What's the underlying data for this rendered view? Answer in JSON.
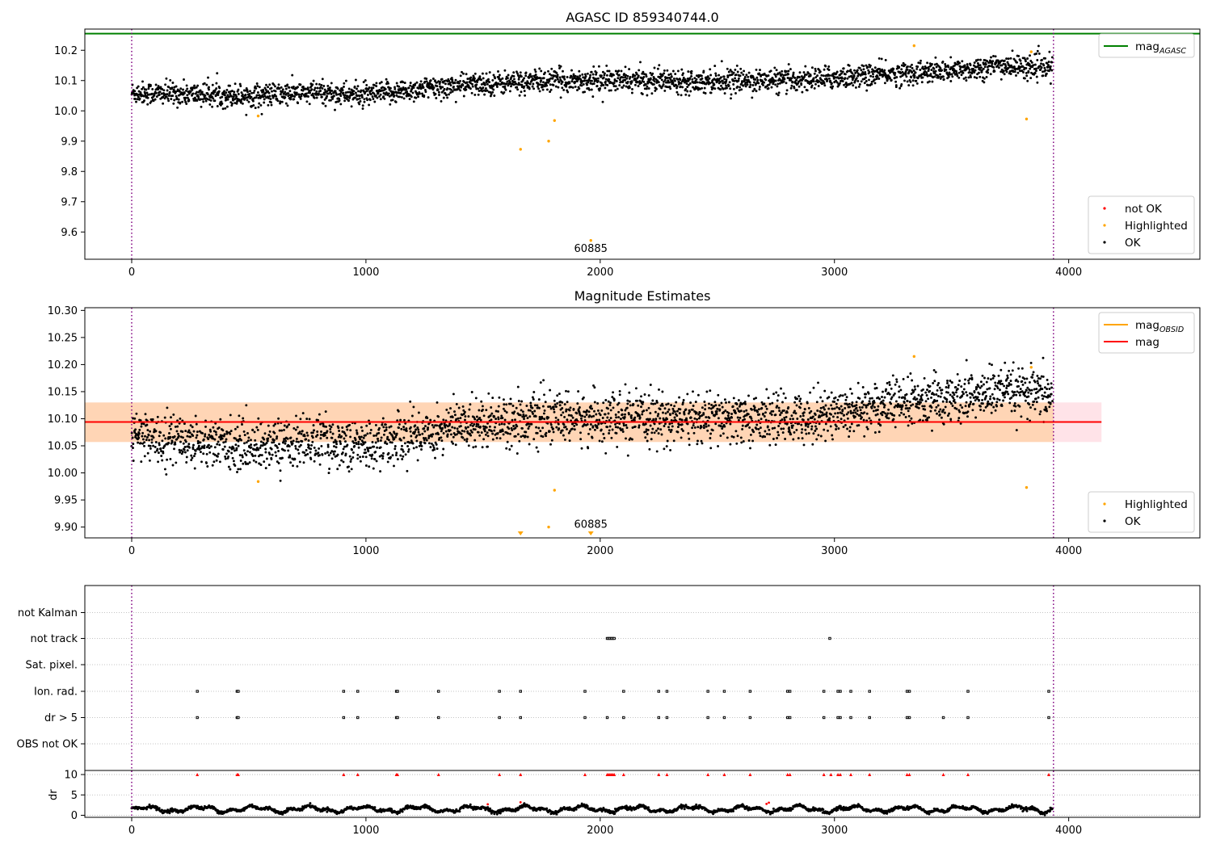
{
  "chart_data": [
    {
      "type": "scatter",
      "title": "AGASC ID 859340744.0",
      "xlim": [
        -200,
        4560
      ],
      "ylim": [
        9.51,
        10.27
      ],
      "xticks": [
        0,
        1000,
        2000,
        3000,
        4000
      ],
      "yticks": [
        9.6,
        9.7,
        9.8,
        9.9,
        10.0,
        10.1,
        10.2
      ],
      "ytick_decimals": 1,
      "vlines": [
        0,
        3935
      ],
      "hlines": [
        {
          "y": 10.255,
          "color": "#008000",
          "xmin": -200,
          "xmax": 4560
        }
      ],
      "ok_trend": [
        [
          0,
          10.06
        ],
        [
          500,
          10.05
        ],
        [
          800,
          10.06
        ],
        [
          1000,
          10.05
        ],
        [
          1200,
          10.07
        ],
        [
          1500,
          10.09
        ],
        [
          1800,
          10.1
        ],
        [
          2100,
          10.1
        ],
        [
          2500,
          10.1
        ],
        [
          2800,
          10.1
        ],
        [
          3000,
          10.11
        ],
        [
          3200,
          10.12
        ],
        [
          3500,
          10.13
        ],
        [
          3700,
          10.15
        ],
        [
          3930,
          10.14
        ]
      ],
      "ok_spread": 0.025,
      "highlighted_points": [
        [
          540,
          9.983
        ],
        [
          1660,
          9.873
        ],
        [
          1780,
          9.9
        ],
        [
          1805,
          9.968
        ],
        [
          1960,
          9.572
        ],
        [
          3340,
          10.215
        ],
        [
          3820,
          9.973
        ],
        [
          3840,
          10.195
        ]
      ],
      "annotations": [
        {
          "x": 1960,
          "y": 9.572,
          "text": "60885"
        }
      ],
      "legends": [
        {
          "position": "upper-right",
          "items": [
            {
              "kind": "line",
              "color": "#008000",
              "label": "mag",
              "sub": "AGASC"
            }
          ]
        },
        {
          "position": "lower-right",
          "items": [
            {
              "kind": "dot",
              "color": "#ff0000",
              "label": "not OK"
            },
            {
              "kind": "dot",
              "color": "#ffa500",
              "label": "Highlighted"
            },
            {
              "kind": "dot",
              "color": "#000000",
              "label": "OK"
            }
          ]
        }
      ]
    },
    {
      "type": "scatter",
      "title": "Magnitude Estimates",
      "xlim": [
        -200,
        4560
      ],
      "ylim": [
        9.88,
        10.305
      ],
      "xticks": [
        0,
        1000,
        2000,
        3000,
        4000
      ],
      "yticks": [
        9.9,
        9.95,
        10.0,
        10.05,
        10.1,
        10.15,
        10.2,
        10.25,
        10.3
      ],
      "ytick_decimals": 2,
      "vlines": [
        0,
        3935
      ],
      "mean_line": {
        "y": 10.094,
        "color": "#ff0000",
        "xmin": -200,
        "xmax": 4140
      },
      "band_outer": {
        "y0": 10.057,
        "y1": 10.13,
        "color": "#ffc0cb",
        "xmin": -200,
        "xmax": 4140
      },
      "band_inner": {
        "y0": 10.057,
        "y1": 10.13,
        "color": "#ffa500",
        "xmin": -200,
        "xmax": 3935
      },
      "ok_trend": [
        [
          0,
          10.07
        ],
        [
          500,
          10.05
        ],
        [
          800,
          10.06
        ],
        [
          1000,
          10.05
        ],
        [
          1200,
          10.07
        ],
        [
          1500,
          10.095
        ],
        [
          1800,
          10.1
        ],
        [
          2100,
          10.1
        ],
        [
          2500,
          10.1
        ],
        [
          2800,
          10.1
        ],
        [
          3000,
          10.11
        ],
        [
          3200,
          10.125
        ],
        [
          3500,
          10.135
        ],
        [
          3700,
          10.15
        ],
        [
          3930,
          10.14
        ]
      ],
      "ok_spread": 0.03,
      "highlighted_points": [
        [
          540,
          9.984
        ],
        [
          1780,
          9.9
        ],
        [
          1805,
          9.968
        ],
        [
          3340,
          10.215
        ],
        [
          3820,
          9.973
        ],
        [
          3840,
          10.195
        ]
      ],
      "offscale_markers": [
        1660,
        1960
      ],
      "annotations": [
        {
          "x": 1960,
          "y": 9.9,
          "text": "60885"
        }
      ],
      "legends": [
        {
          "position": "upper-right",
          "items": [
            {
              "kind": "line",
              "color": "#ffa500",
              "label": "mag",
              "sub": "OBSID"
            },
            {
              "kind": "line",
              "color": "#ff0000",
              "label": "mag",
              "sub": ""
            }
          ]
        },
        {
          "position": "lower-right",
          "items": [
            {
              "kind": "dot",
              "color": "#ffa500",
              "label": "Highlighted"
            },
            {
              "kind": "dot",
              "color": "#000000",
              "label": "OK"
            }
          ]
        }
      ]
    },
    {
      "type": "scatter",
      "title": "",
      "xlim": [
        -200,
        4560
      ],
      "xticks": [
        0,
        1000,
        2000,
        3000,
        4000
      ],
      "vlines": [
        0,
        3935
      ],
      "flag_rows": [
        "not Kalman",
        "not track",
        "Sat. pixel.",
        "Ion. rad.",
        "dr > 5",
        "OBS not OK"
      ],
      "flags": {
        "not track": [
          2030,
          2036,
          2042,
          2048,
          2054,
          2060,
          2980
        ],
        "Ion. rad.": [
          280,
          450,
          455,
          905,
          965,
          1130,
          1135,
          1310,
          1570,
          1660,
          1935,
          2100,
          2250,
          2285,
          2460,
          2530,
          2640,
          2800,
          2810,
          2955,
          3015,
          3025,
          3070,
          3150,
          3310,
          3320,
          3570,
          3915
        ],
        "dr > 5": [
          280,
          450,
          455,
          905,
          965,
          1130,
          1135,
          1310,
          1570,
          1660,
          1935,
          2030,
          2100,
          2250,
          2285,
          2460,
          2530,
          2640,
          2800,
          2810,
          2955,
          3015,
          3025,
          3070,
          3150,
          3310,
          3320,
          3465,
          3570,
          3915
        ]
      },
      "dr": {
        "ylim": [
          -0.5,
          11
        ],
        "yticks": [
          0,
          5,
          10
        ],
        "ylabel": "dr",
        "clip_value": 10,
        "clipped_x": [
          280,
          450,
          455,
          905,
          965,
          1130,
          1135,
          1310,
          1570,
          1660,
          1935,
          2030,
          2036,
          2042,
          2048,
          2054,
          2060,
          2100,
          2250,
          2285,
          2460,
          2530,
          2640,
          2800,
          2810,
          2955,
          2985,
          3015,
          3025,
          3070,
          3150,
          3310,
          3320,
          3465,
          3570,
          3915
        ],
        "spikes": [
          [
            1520,
            2.7
          ],
          [
            1660,
            3.2
          ],
          [
            2710,
            2.8
          ],
          [
            2720,
            3.1
          ]
        ],
        "baseline": 1.5
      }
    }
  ]
}
